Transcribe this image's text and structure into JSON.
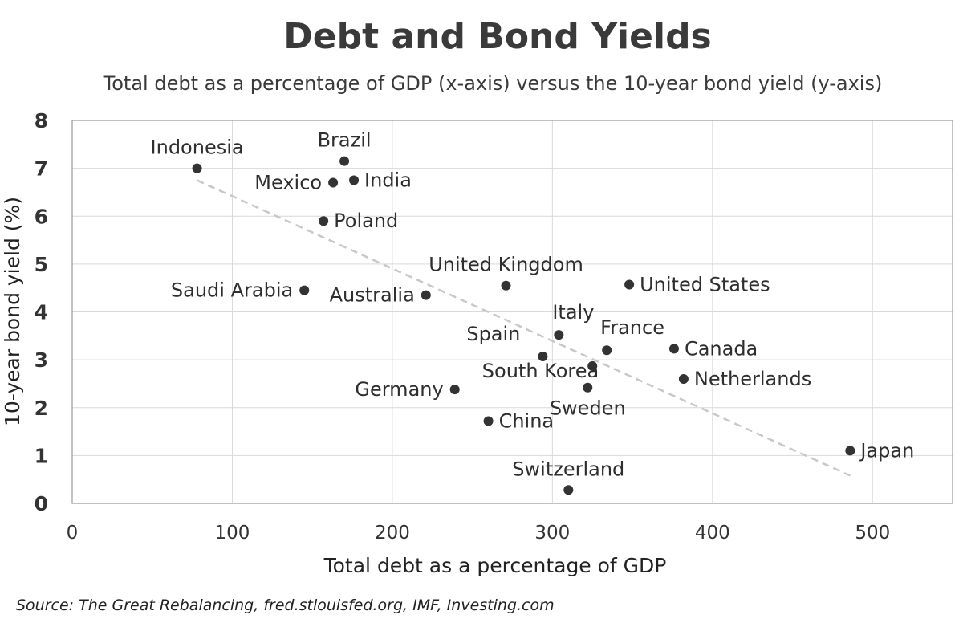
{
  "chart_data": {
    "type": "scatter",
    "title": "Debt and Bond Yields",
    "subtitle": "Total debt as a percentage of GDP (x-axis) versus the 10-year bond yield (y-axis)",
    "xlabel": "Total debt as a percentage of GDP",
    "ylabel": "10-year bond yield (%)",
    "xlim": [
      0,
      550
    ],
    "ylim": [
      0,
      8
    ],
    "xticks": [
      0,
      100,
      200,
      300,
      400,
      500
    ],
    "yticks": [
      0,
      1,
      2,
      3,
      4,
      5,
      6,
      7,
      8
    ],
    "grid": true,
    "legend": "none",
    "point_color": "#333333",
    "trendline_color": "#cccccc",
    "points": [
      {
        "label": "Indonesia",
        "x": 78,
        "y": 7.0,
        "label_pos": "above"
      },
      {
        "label": "Brazil",
        "x": 170,
        "y": 7.15,
        "label_pos": "above"
      },
      {
        "label": "Mexico",
        "x": 163,
        "y": 6.7,
        "label_pos": "left"
      },
      {
        "label": "India",
        "x": 176,
        "y": 6.75,
        "label_pos": "right"
      },
      {
        "label": "Poland",
        "x": 157,
        "y": 5.9,
        "label_pos": "right"
      },
      {
        "label": "Saudi Arabia",
        "x": 145,
        "y": 4.45,
        "label_pos": "left"
      },
      {
        "label": "Australia",
        "x": 221,
        "y": 4.35,
        "label_pos": "left"
      },
      {
        "label": "United Kingdom",
        "x": 271,
        "y": 4.55,
        "label_pos": "above"
      },
      {
        "label": "United States",
        "x": 348,
        "y": 4.57,
        "label_pos": "right"
      },
      {
        "label": "Italy",
        "x": 304,
        "y": 3.52,
        "label_pos": "above-right"
      },
      {
        "label": "Spain",
        "x": 294,
        "y": 3.07,
        "label_pos": "above-left"
      },
      {
        "label": "France",
        "x": 334,
        "y": 3.2,
        "label_pos": "above-right"
      },
      {
        "label": "Canada",
        "x": 376,
        "y": 3.23,
        "label_pos": "right"
      },
      {
        "label": "South Korea",
        "x": 325,
        "y": 2.87,
        "label_pos": "below-left"
      },
      {
        "label": "Netherlands",
        "x": 382,
        "y": 2.6,
        "label_pos": "right"
      },
      {
        "label": "Germany",
        "x": 239,
        "y": 2.38,
        "label_pos": "left"
      },
      {
        "label": "Sweden",
        "x": 322,
        "y": 2.42,
        "label_pos": "below"
      },
      {
        "label": "China",
        "x": 260,
        "y": 1.72,
        "label_pos": "right"
      },
      {
        "label": "Japan",
        "x": 486,
        "y": 1.1,
        "label_pos": "right"
      },
      {
        "label": "Switzerland",
        "x": 310,
        "y": 0.28,
        "label_pos": "above"
      }
    ],
    "trendline": {
      "x": [
        78,
        486
      ],
      "y": [
        6.75,
        0.58
      ]
    },
    "source": "Source: The Great Rebalancing, fred.stlouisfed.org, IMF, Investing.com"
  }
}
